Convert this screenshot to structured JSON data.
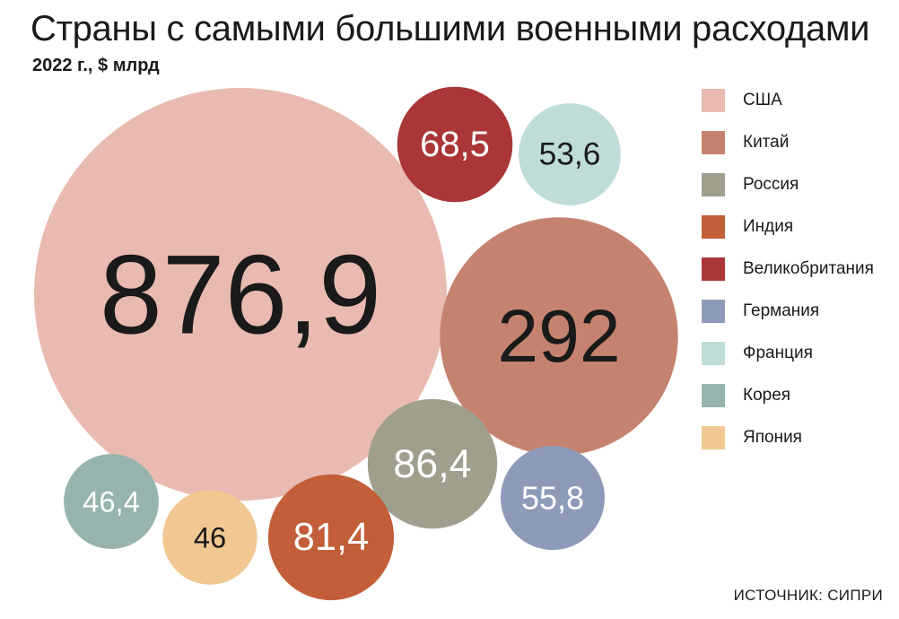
{
  "chart_data": {
    "type": "bubble",
    "title": "Страны с самыми большими военными расходами",
    "subtitle": "2022 г., $ млрд",
    "legend_position": "right",
    "series": [
      {
        "name": "США",
        "value": 876.9,
        "label": "876,9",
        "color": "#e9bab1",
        "text_color": "#1a1a1a"
      },
      {
        "name": "Китай",
        "value": 292,
        "label": "292",
        "color": "#c5836f",
        "text_color": "#1a1a1a"
      },
      {
        "name": "Россия",
        "value": 86.4,
        "label": "86,4",
        "color": "#a09f8d",
        "text_color": "#ffffff"
      },
      {
        "name": "Индия",
        "value": 81.4,
        "label": "81,4",
        "color": "#c25e38",
        "text_color": "#ffffff"
      },
      {
        "name": "Великобритания",
        "value": 68.5,
        "label": "68,5",
        "color": "#ab3638",
        "text_color": "#ffffff"
      },
      {
        "name": "Германия",
        "value": 55.8,
        "label": "55,8",
        "color": "#8d9bb8",
        "text_color": "#ffffff"
      },
      {
        "name": "Франция",
        "value": 53.6,
        "label": "53,6",
        "color": "#c0dcd8",
        "text_color": "#1a1a1a"
      },
      {
        "name": "Корея",
        "value": 46.4,
        "label": "46,4",
        "color": "#97b3ad",
        "text_color": "#ffffff"
      },
      {
        "name": "Япония",
        "value": 46,
        "label": "46",
        "color": "#f1c892",
        "text_color": "#1a1a1a"
      }
    ]
  },
  "source": "ИСТОЧНИК: СИПРИ"
}
